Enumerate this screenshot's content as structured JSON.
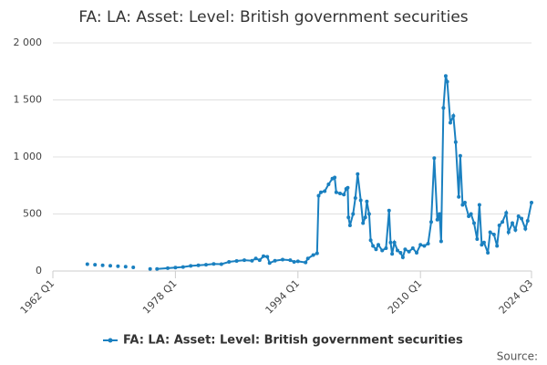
{
  "chart_data": {
    "type": "line",
    "title": "FA: LA: Asset: Level: British government securities",
    "source": "Source:",
    "xlim": [
      1962,
      2024.5
    ],
    "xticks": [
      {
        "value": 1962,
        "label": "1962 Q1"
      },
      {
        "value": 1978,
        "label": "1978 Q1"
      },
      {
        "value": 1994,
        "label": "1994 Q1"
      },
      {
        "value": 2010,
        "label": "2010 Q1"
      },
      {
        "value": 2024.5,
        "label": "2024 Q3"
      }
    ],
    "ylim": [
      0,
      2000
    ],
    "yticks": [
      0,
      500,
      {
        "value": 1000,
        "label": "1 000"
      },
      {
        "value": 1500,
        "label": "1 500"
      },
      {
        "value": 2000,
        "label": "2 000"
      }
    ],
    "grid": true,
    "legend": "bottom",
    "series": [
      {
        "name": "FA: LA: Asset: Level: British government securities",
        "color": "#1a80c0",
        "x": [
          1966.5,
          null,
          1967.5,
          null,
          1968.5,
          null,
          1969.5,
          null,
          1970.5,
          null,
          1971.5,
          null,
          1972.5,
          null,
          1974.7,
          null,
          1975.6,
          1977,
          1978,
          1979,
          1980,
          1981,
          1982,
          1983,
          1984,
          1985,
          1986,
          1987,
          1988,
          1988.5,
          1989,
          1989.5,
          1990,
          1990.3,
          1991,
          1992,
          1993,
          1993.5,
          1994,
          1995,
          1995.3,
          1996,
          1996.5,
          1996.7,
          1997,
          1997.5,
          1998,
          1998.5,
          1998.8,
          1999,
          1999.5,
          2000,
          2000.3,
          2000.5,
          2000.6,
          2000.8,
          2001.2,
          2001.5,
          2001.8,
          2002.2,
          2002.5,
          2002.8,
          2003,
          2003.3,
          2003.5,
          2003.8,
          2004.2,
          2004.5,
          2005,
          2005.5,
          2005.9,
          2006.1,
          2006.3,
          2006.6,
          2007,
          2007.4,
          2007.7,
          2008,
          2008.5,
          2009,
          2009.5,
          2010,
          2010.5,
          2011,
          2011.4,
          2011.8,
          2012.2,
          2012.5,
          2012.7,
          2013,
          2013.3,
          2013.5,
          2013.9,
          2014.3,
          2014.6,
          2015,
          2015.2,
          2015.5,
          2015.8,
          2016.3,
          2016.6,
          2017,
          2017.4,
          2017.7,
          2018,
          2018.3,
          2018.8,
          2019.1,
          2019.6,
          2020,
          2020.3,
          2020.7,
          2021.2,
          2021.5,
          2022,
          2022.4,
          2022.8,
          2023.2,
          2023.7,
          2024,
          2024.5
        ],
        "values": [
          60,
          null,
          55,
          null,
          50,
          null,
          46,
          null,
          42,
          null,
          38,
          null,
          32,
          null,
          18,
          null,
          18,
          25,
          30,
          35,
          45,
          50,
          55,
          62,
          60,
          80,
          88,
          95,
          90,
          110,
          95,
          130,
          125,
          70,
          90,
          100,
          95,
          80,
          85,
          75,
          110,
          140,
          155,
          660,
          690,
          700,
          760,
          810,
          820,
          690,
          680,
          670,
          720,
          730,
          470,
          400,
          500,
          640,
          850,
          620,
          420,
          470,
          610,
          500,
          270,
          220,
          190,
          230,
          180,
          200,
          530,
          250,
          150,
          250,
          180,
          160,
          120,
          190,
          170,
          200,
          160,
          230,
          220,
          240,
          430,
          990,
          450,
          500,
          260,
          1430,
          1710,
          1660,
          1300,
          1360,
          1130,
          650,
          1010,
          580,
          600,
          480,
          500,
          420,
          280,
          580,
          230,
          250,
          160,
          340,
          320,
          220,
          400,
          430,
          510,
          340,
          420,
          360,
          480,
          460,
          370,
          440,
          600
        ]
      }
    ]
  }
}
